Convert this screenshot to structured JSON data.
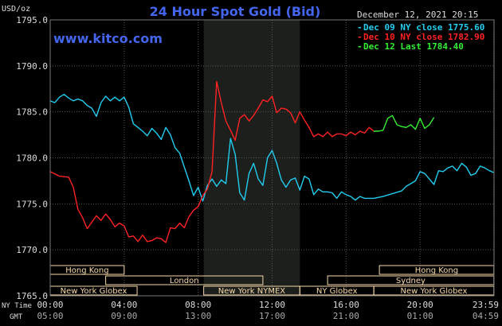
{
  "header": {
    "title": "24 Hour Spot Gold (Bid)",
    "unit": "USD/oz",
    "datetime": "December 12, 2021 20:15",
    "watermark": "www.kitco.com"
  },
  "legend": [
    {
      "text": "Dec 09 NY close 1775.60",
      "color": "#22ccee"
    },
    {
      "text": "Dec 10 NY close 1782.90",
      "color": "#ff2222"
    },
    {
      "text": "Dec 12 Last 1784.40",
      "color": "#33ee33"
    }
  ],
  "time_rows": {
    "ny_label": "NY Time",
    "gmt_label": "GMT",
    "ny_ticks": [
      "00:00",
      "04:00",
      "08:00",
      "12:00",
      "16:00",
      "20:00",
      "23:59"
    ],
    "gmt_ticks": [
      "05:00",
      "09:00",
      "13:00",
      "17:00",
      "21:00",
      "01:00",
      "04:59"
    ]
  },
  "markets": [
    {
      "name": "Hong Kong",
      "row": 0,
      "start": 0.0,
      "end": 4.0
    },
    {
      "name": "Hong Kong",
      "row": 0,
      "start": 17.8,
      "end": 23.99
    },
    {
      "name": "London",
      "row": 1,
      "start": 3.0,
      "end": 11.5
    },
    {
      "name": "Sydney",
      "row": 1,
      "start": 15.0,
      "end": 23.99
    },
    {
      "name": "New York Globex",
      "row": 2,
      "start": 0.0,
      "end": 4.7
    },
    {
      "name": "New York NYMEX",
      "row": 2,
      "start": 8.3,
      "end": 13.5
    },
    {
      "name": "NY Globex",
      "row": 2,
      "start": 13.5,
      "end": 17.5
    },
    {
      "name": "New York Globex",
      "row": 2,
      "start": 17.5,
      "end": 23.99
    }
  ],
  "colors": {
    "background": "#000000",
    "grid": "#555555",
    "highlight": "#1c1f1c",
    "title": "#4466ee",
    "axis_text": "#dddddd",
    "market_box": "#f7d9a8"
  },
  "chart_data": {
    "type": "line",
    "title": "24 Hour Spot Gold (Bid)",
    "ylabel": "USD/oz",
    "xlabel": "NY Time / GMT",
    "xlim": [
      0,
      24
    ],
    "ylim": [
      1765,
      1795
    ],
    "y_ticks": [
      1765,
      1770,
      1775,
      1780,
      1785,
      1790,
      1795
    ],
    "x_ticks": [
      0,
      4,
      8,
      12,
      16,
      20,
      23.99
    ],
    "x_tick_labels": [
      "00:00",
      "04:00",
      "08:00",
      "12:00",
      "16:00",
      "20:00",
      "23:59"
    ],
    "grid": true,
    "highlight_range": [
      8.3,
      13.5
    ],
    "series": [
      {
        "name": "Dec 09 NY close 1775.60",
        "color": "#22ccee",
        "points": [
          [
            0,
            1786.2
          ],
          [
            0.25,
            1786.0
          ],
          [
            0.5,
            1786.6
          ],
          [
            0.75,
            1786.9
          ],
          [
            1.0,
            1786.5
          ],
          [
            1.25,
            1786.2
          ],
          [
            1.5,
            1786.4
          ],
          [
            1.75,
            1786.2
          ],
          [
            2.0,
            1785.7
          ],
          [
            2.25,
            1785.4
          ],
          [
            2.5,
            1784.5
          ],
          [
            2.75,
            1786.0
          ],
          [
            3.0,
            1786.7
          ],
          [
            3.25,
            1786.2
          ],
          [
            3.5,
            1786.6
          ],
          [
            3.75,
            1786.2
          ],
          [
            4.0,
            1786.6
          ],
          [
            4.25,
            1785.5
          ],
          [
            4.5,
            1783.7
          ],
          [
            4.75,
            1783.3
          ],
          [
            5.0,
            1782.9
          ],
          [
            5.25,
            1782.4
          ],
          [
            5.5,
            1783.2
          ],
          [
            5.75,
            1782.7
          ],
          [
            6.0,
            1782.0
          ],
          [
            6.25,
            1783.3
          ],
          [
            6.5,
            1782.5
          ],
          [
            6.75,
            1781.1
          ],
          [
            7.0,
            1780.5
          ],
          [
            7.25,
            1779.0
          ],
          [
            7.5,
            1777.5
          ],
          [
            7.75,
            1775.9
          ],
          [
            8.0,
            1776.8
          ],
          [
            8.25,
            1775.3
          ],
          [
            8.5,
            1777.0
          ],
          [
            8.75,
            1777.7
          ],
          [
            9.0,
            1776.9
          ],
          [
            9.25,
            1777.6
          ],
          [
            9.5,
            1777.2
          ],
          [
            9.75,
            1782.1
          ],
          [
            10.0,
            1780.4
          ],
          [
            10.25,
            1776.2
          ],
          [
            10.5,
            1775.4
          ],
          [
            10.75,
            1778.3
          ],
          [
            11.0,
            1779.4
          ],
          [
            11.25,
            1777.7
          ],
          [
            11.5,
            1777.0
          ],
          [
            11.75,
            1780.0
          ],
          [
            12.0,
            1780.8
          ],
          [
            12.25,
            1779.4
          ],
          [
            12.5,
            1777.6
          ],
          [
            12.75,
            1776.8
          ],
          [
            13.0,
            1777.6
          ],
          [
            13.25,
            1777.8
          ],
          [
            13.5,
            1776.5
          ],
          [
            13.75,
            1778.0
          ],
          [
            14.0,
            1777.7
          ],
          [
            14.25,
            1776.0
          ],
          [
            14.5,
            1776.6
          ],
          [
            14.75,
            1776.3
          ],
          [
            15.0,
            1776.3
          ],
          [
            15.25,
            1776.2
          ],
          [
            15.5,
            1775.6
          ],
          [
            15.75,
            1776.3
          ],
          [
            16.0,
            1776.0
          ],
          [
            16.25,
            1775.8
          ],
          [
            16.5,
            1775.4
          ],
          [
            16.75,
            1775.8
          ],
          [
            17.0,
            1775.6
          ],
          [
            17.5,
            1775.6
          ],
          [
            18.0,
            1775.8
          ],
          [
            18.5,
            1776.1
          ],
          [
            19.0,
            1776.4
          ],
          [
            19.25,
            1776.9
          ],
          [
            19.5,
            1777.2
          ],
          [
            19.75,
            1777.5
          ],
          [
            20.0,
            1778.5
          ],
          [
            20.25,
            1778.3
          ],
          [
            20.5,
            1777.7
          ],
          [
            20.75,
            1777.1
          ],
          [
            21.0,
            1778.6
          ],
          [
            21.25,
            1778.5
          ],
          [
            21.5,
            1778.9
          ],
          [
            21.75,
            1779.1
          ],
          [
            22.0,
            1778.6
          ],
          [
            22.25,
            1779.4
          ],
          [
            22.5,
            1779.0
          ],
          [
            22.75,
            1778.1
          ],
          [
            23.0,
            1778.3
          ],
          [
            23.25,
            1779.1
          ],
          [
            23.5,
            1778.9
          ],
          [
            23.75,
            1778.6
          ],
          [
            23.99,
            1778.4
          ]
        ]
      },
      {
        "name": "Dec 10 NY close 1782.90",
        "color": "#ff2222",
        "points": [
          [
            0,
            1778.5
          ],
          [
            0.5,
            1778.0
          ],
          [
            1.0,
            1777.9
          ],
          [
            1.25,
            1776.8
          ],
          [
            1.5,
            1774.4
          ],
          [
            1.75,
            1773.5
          ],
          [
            2.0,
            1772.3
          ],
          [
            2.25,
            1773.0
          ],
          [
            2.5,
            1773.7
          ],
          [
            2.75,
            1773.2
          ],
          [
            3.0,
            1773.9
          ],
          [
            3.25,
            1773.3
          ],
          [
            3.5,
            1772.5
          ],
          [
            3.75,
            1772.9
          ],
          [
            4.0,
            1772.6
          ],
          [
            4.25,
            1771.4
          ],
          [
            4.5,
            1771.5
          ],
          [
            4.75,
            1770.9
          ],
          [
            5.0,
            1771.6
          ],
          [
            5.25,
            1770.9
          ],
          [
            5.5,
            1771.0
          ],
          [
            5.75,
            1771.3
          ],
          [
            6.0,
            1771.2
          ],
          [
            6.25,
            1770.8
          ],
          [
            6.5,
            1772.4
          ],
          [
            6.75,
            1772.3
          ],
          [
            7.0,
            1772.9
          ],
          [
            7.25,
            1772.4
          ],
          [
            7.5,
            1773.6
          ],
          [
            7.75,
            1774.3
          ],
          [
            8.0,
            1774.7
          ],
          [
            8.25,
            1775.9
          ],
          [
            8.5,
            1776.6
          ],
          [
            8.75,
            1778.5
          ],
          [
            9.0,
            1788.3
          ],
          [
            9.25,
            1786.0
          ],
          [
            9.5,
            1784.0
          ],
          [
            9.75,
            1783.0
          ],
          [
            10.0,
            1781.9
          ],
          [
            10.25,
            1784.3
          ],
          [
            10.5,
            1784.7
          ],
          [
            10.75,
            1784.0
          ],
          [
            11.0,
            1784.6
          ],
          [
            11.25,
            1785.4
          ],
          [
            11.5,
            1786.3
          ],
          [
            11.75,
            1786.1
          ],
          [
            12.0,
            1786.7
          ],
          [
            12.25,
            1784.9
          ],
          [
            12.5,
            1785.4
          ],
          [
            12.75,
            1785.3
          ],
          [
            13.0,
            1784.9
          ],
          [
            13.25,
            1783.8
          ],
          [
            13.5,
            1785.0
          ],
          [
            13.75,
            1784.1
          ],
          [
            14.0,
            1783.3
          ],
          [
            14.25,
            1782.3
          ],
          [
            14.5,
            1782.6
          ],
          [
            14.75,
            1782.3
          ],
          [
            15.0,
            1782.8
          ],
          [
            15.25,
            1782.3
          ],
          [
            15.5,
            1782.6
          ],
          [
            15.75,
            1782.6
          ],
          [
            16.0,
            1782.4
          ],
          [
            16.25,
            1782.8
          ],
          [
            16.5,
            1782.5
          ],
          [
            16.75,
            1782.9
          ],
          [
            17.0,
            1782.7
          ],
          [
            17.25,
            1783.3
          ],
          [
            17.5,
            1782.9
          ]
        ]
      },
      {
        "name": "Dec 12 Last 1784.40",
        "color": "#33ee33",
        "points": [
          [
            17.5,
            1782.9
          ],
          [
            17.75,
            1782.9
          ],
          [
            18.0,
            1783.0
          ],
          [
            18.25,
            1784.3
          ],
          [
            18.5,
            1784.6
          ],
          [
            18.75,
            1783.6
          ],
          [
            19.0,
            1783.4
          ],
          [
            19.25,
            1783.3
          ],
          [
            19.5,
            1783.6
          ],
          [
            19.75,
            1783.1
          ],
          [
            20.0,
            1784.3
          ],
          [
            20.25,
            1783.2
          ],
          [
            20.5,
            1783.6
          ],
          [
            20.75,
            1784.4
          ]
        ]
      }
    ]
  }
}
